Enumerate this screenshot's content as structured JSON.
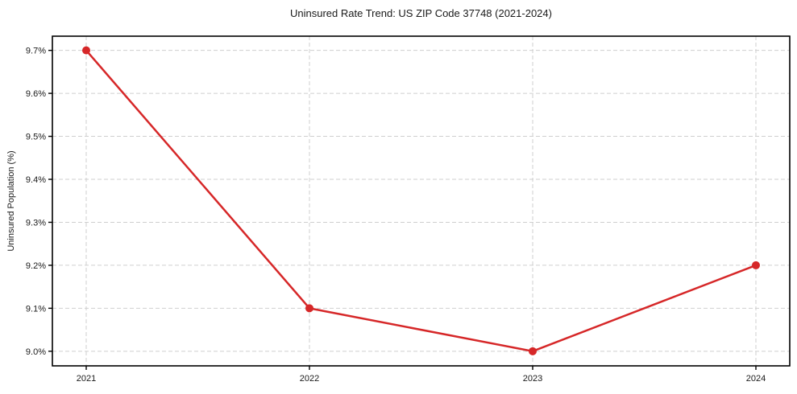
{
  "page": {
    "background": "#ffffff"
  },
  "chart_data": {
    "type": "line",
    "title": "Uninsured Rate Trend: US ZIP Code 37748 (2021-2024)",
    "xlabel": "",
    "ylabel": "Uninsured Population (%)",
    "categories": [
      "2021",
      "2022",
      "2023",
      "2024"
    ],
    "series": [
      {
        "name": "Uninsured rate",
        "color": "#d62728",
        "values": [
          9.7,
          9.1,
          9.0,
          9.2
        ]
      }
    ],
    "yticks": [
      9.0,
      9.1,
      9.2,
      9.3,
      9.4,
      9.5,
      9.6,
      9.7
    ],
    "ytick_labels": [
      "9.0%",
      "9.1%",
      "9.2%",
      "9.3%",
      "9.4%",
      "9.5%",
      "9.6%",
      "9.7%"
    ],
    "ylim": [
      8.966,
      9.733
    ],
    "grid": {
      "horizontal": true,
      "vertical": true,
      "style": "dashed",
      "color": "#cfcfcf"
    },
    "axis_color": "#000000",
    "text_color": "#1a1a1a",
    "legend": "none",
    "marker": "circle"
  }
}
